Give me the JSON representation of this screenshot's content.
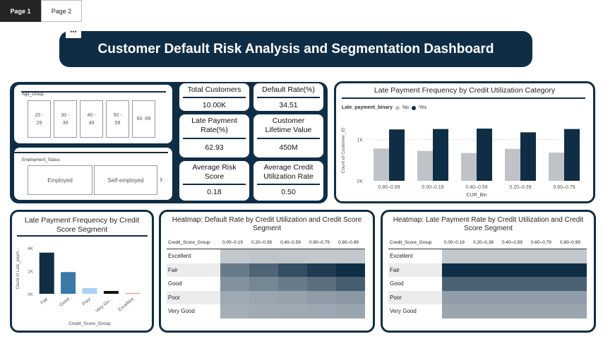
{
  "tabs": [
    {
      "label": "Page 1",
      "active": true
    },
    {
      "label": "Page 2",
      "active": false
    }
  ],
  "header": {
    "title": "Customer Default Risk Analysis and Segmentation Dashboard",
    "menu_icon": "more-options-icon"
  },
  "slicers": {
    "age_group": {
      "label": "Age_Group",
      "options": [
        "20 -\n29",
        "30 -\n39",
        "40 -\n49",
        "50 -\n59",
        "60 -69"
      ]
    },
    "employment_status": {
      "label": "Employment_Status",
      "options": [
        "Employed",
        "Self-employed"
      ],
      "next_icon": "chevron-right-icon"
    }
  },
  "kpis": {
    "total_customers": {
      "title": "Total Customers",
      "value": "10.00K"
    },
    "default_rate": {
      "title": "Default Rate(%)",
      "value": "34.51"
    },
    "late_payment_rate": {
      "title": "Late Payment\nRate(%)",
      "value": "62.93"
    },
    "customer_lifetime_value": {
      "title": "Customer\nLifetime Value",
      "value": "450M"
    },
    "average_risk_score": {
      "title": "Average Risk\nScore",
      "value": "0.18"
    },
    "average_credit_utilization": {
      "title": "Average Credit\nUtilization Rate",
      "value": "0.50"
    }
  },
  "chart_data": [
    {
      "type": "bar",
      "title": "Late Payment Frequency by Credit Utilization Category",
      "legend_title": "Late_payment_binary",
      "xlabel": "CUR_Bin",
      "ylabel": "Count of Customer_ID",
      "categories": [
        "0.80–0.99",
        "0.00–0.19",
        "0.40–0.59",
        "0.20–0.39",
        "0.60–0.79"
      ],
      "series": [
        {
          "name": "No",
          "color": "#bfc3c7",
          "values": [
            780,
            720,
            670,
            770,
            680
          ]
        },
        {
          "name": "Yes",
          "color": "#0f2e46",
          "values": [
            1240,
            1250,
            1260,
            1170,
            1250
          ]
        }
      ],
      "yticks": [
        "0K",
        "1K"
      ],
      "ylim": [
        0,
        1500
      ],
      "legend_position": "top-left"
    },
    {
      "type": "bar",
      "title": "Late Payment Frequency by Credit\nScore Segment",
      "xlabel": "Credit_Score_Group",
      "ylabel": "Count of Late_paym...",
      "categories": [
        "Fair",
        "Good",
        "Poor",
        "Very Go...",
        "Excellent"
      ],
      "values": [
        3600,
        1900,
        500,
        250,
        80
      ],
      "colors": [
        "#0f2e46",
        "#3b79a8",
        "#a9d0ee",
        "#111111",
        "#e8a09a"
      ],
      "yticks": [
        "0K",
        "2K",
        "4K"
      ],
      "ylim": [
        0,
        4200
      ]
    },
    {
      "type": "heatmap",
      "title": "Heatmap: Default Rate by Credit Utilization and Credit Score\nSegment",
      "row_header": "Credit_Score_Group",
      "columns": [
        "0.00–0.19",
        "0.20–0.39",
        "0.40–0.59",
        "0.60–0.79",
        "0.80–0.99"
      ],
      "rows": [
        "Excellent",
        "Fair",
        "Good",
        "Poor",
        "Very Good"
      ],
      "values": [
        [
          0.1,
          0.12,
          0.11,
          0.1,
          0.1
        ],
        [
          0.55,
          0.68,
          0.82,
          0.92,
          1.0
        ],
        [
          0.42,
          0.48,
          0.55,
          0.62,
          0.72
        ],
        [
          0.28,
          0.3,
          0.32,
          0.35,
          0.38
        ],
        [
          0.25,
          0.27,
          0.28,
          0.29,
          0.3
        ]
      ],
      "color_low": "#d6d9dc",
      "color_high": "#0f2e46"
    },
    {
      "type": "heatmap",
      "title": "Heatmap: Late Payment Rate by Credit Utilization and Credit\nScore Segment",
      "row_header": "Credit_Score_Group",
      "columns": [
        "0.00–0.19",
        "0.20–0.39",
        "0.40–0.59",
        "0.60–0.79",
        "0.80–0.99"
      ],
      "rows": [
        "Excellent",
        "Fair",
        "Good",
        "Poor",
        "Very Good"
      ],
      "values": [
        [
          0.1,
          0.1,
          0.1,
          0.1,
          0.1
        ],
        [
          1.0,
          1.0,
          1.0,
          1.0,
          1.0
        ],
        [
          0.7,
          0.7,
          0.7,
          0.7,
          0.7
        ],
        [
          0.35,
          0.35,
          0.35,
          0.35,
          0.35
        ],
        [
          0.3,
          0.3,
          0.3,
          0.3,
          0.3
        ]
      ],
      "color_low": "#d6d9dc",
      "color_high": "#0f2e46"
    }
  ]
}
